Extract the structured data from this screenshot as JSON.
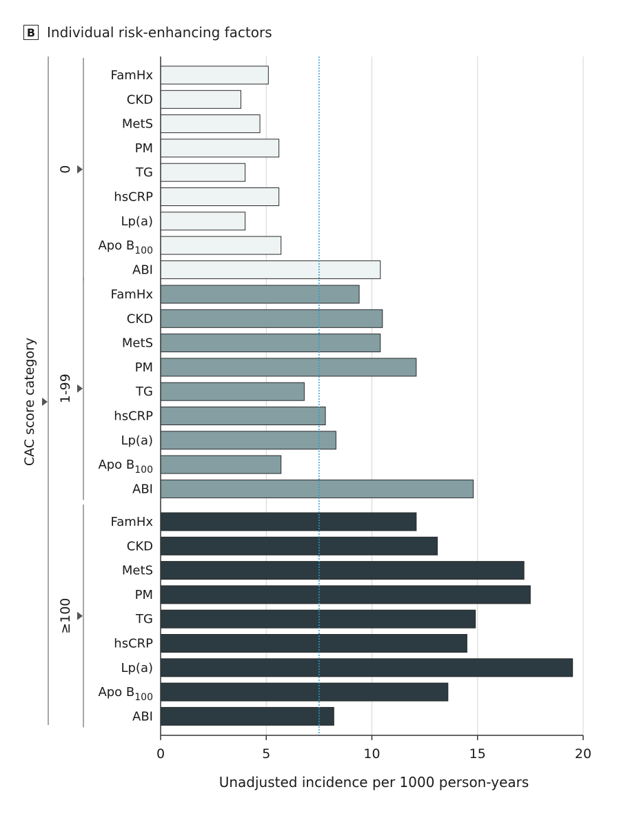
{
  "panel": {
    "letter": "B",
    "title": "Individual risk-enhancing factors"
  },
  "chart_data": {
    "type": "bar",
    "orientation": "horizontal",
    "xlabel": "Unadjusted incidence per 1000 person-years",
    "ylabel": "CAC score category",
    "xlim": [
      0,
      20
    ],
    "xticks": [
      0,
      5,
      10,
      15,
      20
    ],
    "reference_line": 7.5,
    "grid": "vertical",
    "groups": [
      {
        "name": "0",
        "color": "#eef3f3",
        "bars": [
          {
            "label": "FamHx",
            "value": 5.1
          },
          {
            "label": "CKD",
            "value": 3.8
          },
          {
            "label": "MetS",
            "value": 4.7
          },
          {
            "label": "PM",
            "value": 5.6
          },
          {
            "label": "TG",
            "value": 4.0
          },
          {
            "label": "hsCRP",
            "value": 5.6
          },
          {
            "label": "Lp(a)",
            "value": 4.0
          },
          {
            "label": "Apo B",
            "sub": "100",
            "value": 5.7
          },
          {
            "label": "ABI",
            "value": 10.4
          }
        ]
      },
      {
        "name": "1-99",
        "color": "#849ea2",
        "bars": [
          {
            "label": "FamHx",
            "value": 9.4
          },
          {
            "label": "CKD",
            "value": 10.5
          },
          {
            "label": "MetS",
            "value": 10.4
          },
          {
            "label": "PM",
            "value": 12.1
          },
          {
            "label": "TG",
            "value": 6.8
          },
          {
            "label": "hsCRP",
            "value": 7.8
          },
          {
            "label": "Lp(a)",
            "value": 8.3
          },
          {
            "label": "Apo B",
            "sub": "100",
            "value": 5.7
          },
          {
            "label": "ABI",
            "value": 14.8
          }
        ]
      },
      {
        "name": "≥100",
        "color": "#2b3b41",
        "bars": [
          {
            "label": "FamHx",
            "value": 12.1
          },
          {
            "label": "CKD",
            "value": 13.1
          },
          {
            "label": "MetS",
            "value": 17.2
          },
          {
            "label": "PM",
            "value": 17.5
          },
          {
            "label": "TG",
            "value": 14.9
          },
          {
            "label": "hsCRP",
            "value": 14.5
          },
          {
            "label": "Lp(a)",
            "value": 19.5
          },
          {
            "label": "Apo B",
            "sub": "100",
            "value": 13.6
          },
          {
            "label": "ABI",
            "value": 8.2
          }
        ]
      }
    ]
  }
}
